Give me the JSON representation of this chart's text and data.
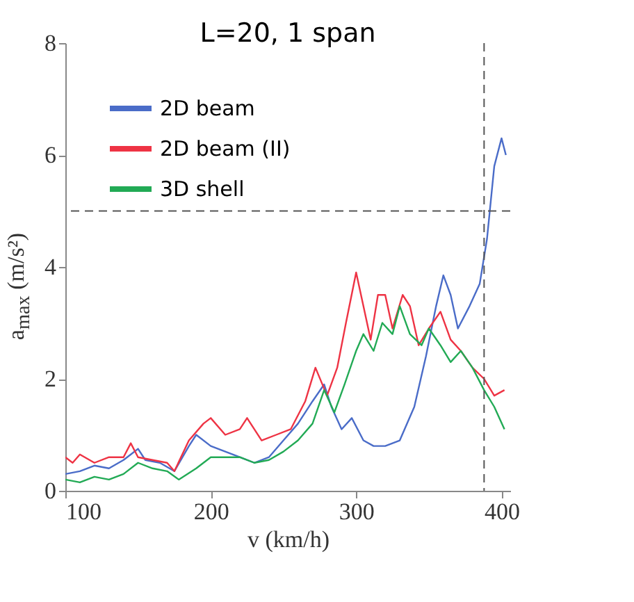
{
  "chart_data": {
    "type": "line",
    "title": "L=20, 1 span",
    "xlabel": "v (km/h)",
    "ylabel": "a$_{max}$ (m/s²)",
    "xlim": [
      100,
      406
    ],
    "xticks": [
      100,
      200,
      300,
      400
    ],
    "ylim": [
      0,
      8
    ],
    "yticks": [
      0,
      2,
      4,
      6,
      8
    ],
    "legend": "top left",
    "line_style": "solid",
    "ref_lines": [
      {
        "axis": "y",
        "value": 5,
        "color": "#555555",
        "line_style": "dashed"
      },
      {
        "axis": "x",
        "value": 388,
        "color": "#555555",
        "line_style": "dashed"
      }
    ],
    "series": [
      {
        "name": "2D beam",
        "color": "#4a6cc8",
        "x": [
          100,
          110,
          120,
          130,
          140,
          145,
          150,
          155,
          165,
          175,
          185,
          190,
          200,
          210,
          220,
          230,
          240,
          250,
          260,
          270,
          278,
          283,
          290,
          297,
          305,
          312,
          320,
          330,
          340,
          348,
          355,
          360,
          365,
          370,
          378,
          385,
          390,
          395,
          400,
          403
        ],
        "values": [
          0.3,
          0.35,
          0.45,
          0.4,
          0.55,
          0.65,
          0.75,
          0.55,
          0.5,
          0.35,
          0.8,
          1.0,
          0.8,
          0.7,
          0.6,
          0.5,
          0.6,
          0.9,
          1.2,
          1.6,
          1.9,
          1.5,
          1.1,
          1.3,
          0.9,
          0.8,
          0.8,
          0.9,
          1.5,
          2.4,
          3.3,
          3.85,
          3.5,
          2.9,
          3.3,
          3.7,
          4.5,
          5.8,
          6.3,
          6.0
        ]
      },
      {
        "name": "2D beam (II)",
        "color": "#ee3344",
        "x": [
          100,
          105,
          110,
          120,
          130,
          140,
          145,
          150,
          160,
          170,
          175,
          185,
          195,
          200,
          210,
          220,
          225,
          235,
          245,
          255,
          265,
          272,
          280,
          287,
          293,
          300,
          305,
          310,
          315,
          320,
          325,
          332,
          337,
          343,
          350,
          358,
          365,
          372,
          380,
          388,
          395,
          402
        ],
        "values": [
          0.6,
          0.5,
          0.65,
          0.5,
          0.6,
          0.6,
          0.85,
          0.6,
          0.55,
          0.5,
          0.35,
          0.9,
          1.2,
          1.3,
          1.0,
          1.1,
          1.3,
          0.9,
          1.0,
          1.1,
          1.6,
          2.2,
          1.7,
          2.2,
          3.0,
          3.9,
          3.3,
          2.7,
          3.5,
          3.5,
          2.9,
          3.5,
          3.3,
          2.6,
          2.9,
          3.2,
          2.7,
          2.5,
          2.2,
          2.0,
          1.7,
          1.8
        ]
      },
      {
        "name": "3D shell",
        "color": "#22aa55",
        "x": [
          100,
          110,
          120,
          130,
          140,
          150,
          160,
          170,
          178,
          190,
          200,
          210,
          220,
          230,
          240,
          250,
          260,
          270,
          278,
          285,
          292,
          300,
          305,
          312,
          318,
          325,
          330,
          337,
          345,
          350,
          358,
          365,
          372,
          380,
          388,
          395,
          402
        ],
        "values": [
          0.2,
          0.15,
          0.25,
          0.2,
          0.3,
          0.5,
          0.4,
          0.35,
          0.2,
          0.4,
          0.6,
          0.6,
          0.6,
          0.5,
          0.55,
          0.7,
          0.9,
          1.2,
          1.8,
          1.4,
          1.9,
          2.5,
          2.8,
          2.5,
          3.0,
          2.8,
          3.3,
          2.8,
          2.6,
          2.9,
          2.6,
          2.3,
          2.5,
          2.2,
          1.8,
          1.5,
          1.1
        ]
      }
    ]
  }
}
